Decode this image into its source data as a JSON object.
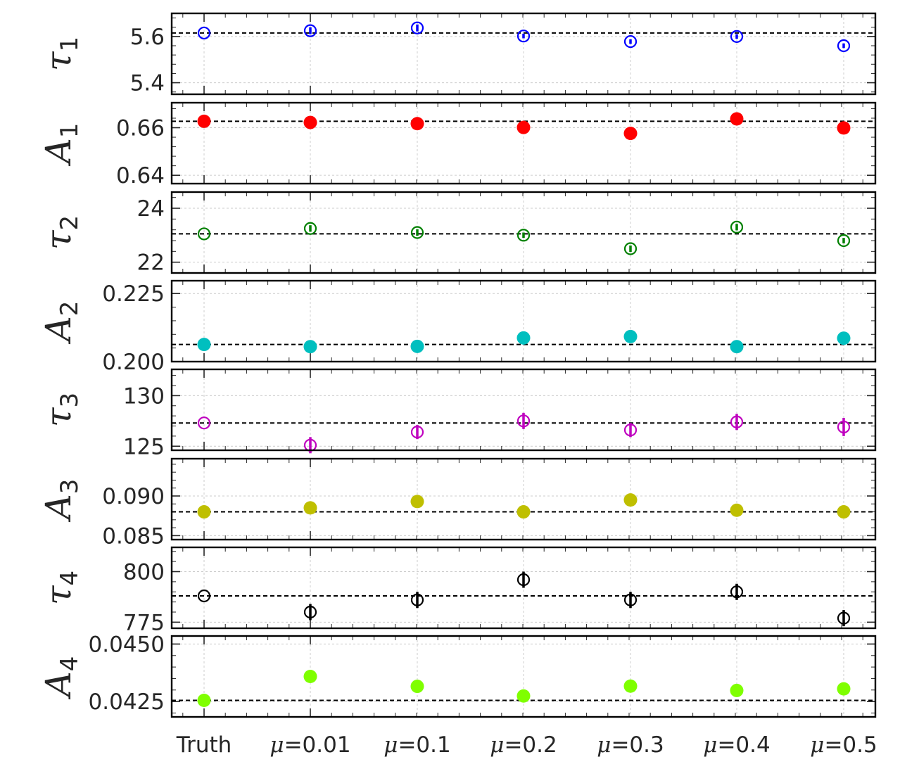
{
  "chart_data": {
    "type": "scatter",
    "categories": [
      "Truth",
      "μ=0.01",
      "μ=0.1",
      "μ=0.2",
      "μ=0.3",
      "μ=0.4",
      "μ=0.5"
    ],
    "grid": true,
    "panels": [
      {
        "param": "τ",
        "sub": "1",
        "color": "#0000ff",
        "marker": "open-circle",
        "values": [
          5.615,
          5.625,
          5.637,
          5.602,
          5.578,
          5.6,
          5.56
        ],
        "errors": [
          0,
          0.015,
          0.015,
          0.01,
          0.01,
          0.01,
          0.01
        ],
        "truth_line": 5.615,
        "ylim": [
          5.35,
          5.7
        ],
        "ticks": [
          5.4,
          5.6
        ],
        "tick_labels": [
          "5.4",
          "5.6"
        ]
      },
      {
        "param": "A",
        "sub": "1",
        "color": "#ff0000",
        "marker": "filled-circle",
        "values": [
          0.6627,
          0.6622,
          0.6617,
          0.6601,
          0.6576,
          0.6637,
          0.6599
        ],
        "errors": [
          0,
          0,
          0,
          0,
          0,
          0,
          0
        ],
        "truth_line": 0.6627,
        "ylim": [
          0.6365,
          0.6705
        ],
        "ticks": [
          0.64,
          0.66
        ],
        "tick_labels": [
          "0.64",
          "0.66"
        ]
      },
      {
        "param": "τ",
        "sub": "2",
        "color": "#008000",
        "marker": "open-circle",
        "values": [
          23.05,
          23.25,
          23.1,
          23.0,
          22.5,
          23.3,
          22.8
        ],
        "errors": [
          0,
          0.12,
          0.12,
          0.1,
          0.12,
          0.12,
          0.1
        ],
        "truth_line": 23.05,
        "ylim": [
          21.6,
          24.6
        ],
        "ticks": [
          22,
          24
        ],
        "tick_labels": [
          "22",
          "24"
        ]
      },
      {
        "param": "A",
        "sub": "2",
        "color": "#00bfbf",
        "marker": "filled-circle",
        "values": [
          0.2063,
          0.2055,
          0.2056,
          0.2087,
          0.2092,
          0.2055,
          0.2086
        ],
        "errors": [
          0,
          0,
          0,
          0,
          0,
          0,
          0
        ],
        "truth_line": 0.2063,
        "ylim": [
          0.2,
          0.2297
        ],
        "ticks": [
          0.2,
          0.225
        ],
        "tick_labels": [
          "0.200",
          "0.225"
        ]
      },
      {
        "param": "τ",
        "sub": "3",
        "color": "#bf00bf",
        "marker": "open-circle",
        "values": [
          127.3,
          125.1,
          126.4,
          127.5,
          126.6,
          127.4,
          126.9
        ],
        "errors": [
          0,
          0.8,
          0.7,
          0.8,
          0.7,
          0.8,
          0.9
        ],
        "truth_line": 127.3,
        "ylim": [
          124.6,
          132.6
        ],
        "ticks": [
          125,
          130
        ],
        "tick_labels": [
          "125",
          "130"
        ]
      },
      {
        "param": "A",
        "sub": "3",
        "color": "#bfbf00",
        "marker": "filled-circle",
        "values": [
          0.088,
          0.0885,
          0.0893,
          0.088,
          0.0895,
          0.0882,
          0.088
        ],
        "errors": [
          0,
          0,
          0,
          0,
          0,
          0,
          0
        ],
        "truth_line": 0.088,
        "ylim": [
          0.0845,
          0.0947
        ],
        "ticks": [
          0.085,
          0.09
        ],
        "tick_labels": [
          "0.085",
          "0.090"
        ]
      },
      {
        "param": "τ",
        "sub": "4",
        "color": "#000000",
        "marker": "open-circle",
        "values": [
          788,
          780,
          786,
          796,
          786,
          790,
          777
        ],
        "errors": [
          0,
          4,
          4,
          4,
          4,
          4,
          4
        ],
        "truth_line": 788,
        "ylim": [
          772,
          812
        ],
        "ticks": [
          775,
          800
        ],
        "tick_labels": [
          "775",
          "800"
        ]
      },
      {
        "param": "A",
        "sub": "4",
        "color": "#7fff00",
        "marker": "filled-circle",
        "values": [
          0.04255,
          0.04359,
          0.04316,
          0.04274,
          0.04317,
          0.04298,
          0.04305
        ],
        "errors": [
          0,
          0,
          0,
          0,
          0,
          0,
          0
        ],
        "truth_line": 0.04255,
        "ylim": [
          0.04183,
          0.04535
        ],
        "ticks": [
          0.0425,
          0.045
        ],
        "tick_labels": [
          "0.0425",
          "0.0450"
        ]
      }
    ]
  }
}
